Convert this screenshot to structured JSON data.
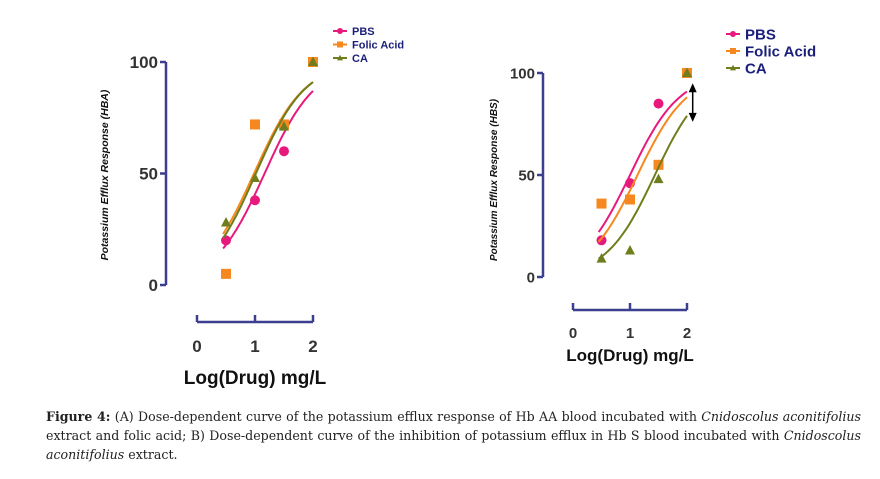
{
  "chart_data": [
    {
      "panel": "A",
      "type": "scatter",
      "title": "",
      "xlabel": "Log(Drug) mg/L",
      "ylabel": "Potassium Efflux Response (HBA)",
      "xlim": [
        0,
        2
      ],
      "ylim": [
        0,
        100
      ],
      "xticks": [
        "0",
        "1",
        "2"
      ],
      "yticks": [
        "0",
        "50",
        "100"
      ],
      "legend_position": "top-right",
      "series": [
        {
          "name": "PBS",
          "color": "#e8197d",
          "marker": "circle",
          "x": [
            0.5,
            1,
            1.5,
            2
          ],
          "y": [
            20,
            38,
            60,
            100
          ],
          "fit": {
            "logEC50": 1.165,
            "hill": 0.99
          }
        },
        {
          "name": "Folic Acid",
          "color": "#f7871f",
          "marker": "square",
          "x": [
            0.5,
            1,
            1.5,
            2
          ],
          "y": [
            5,
            72,
            72,
            100
          ],
          "fit": {
            "logEC50": 0.983,
            "hill": 0.99
          }
        },
        {
          "name": "CA",
          "color": "#6f7d1c",
          "marker": "triangle",
          "x": [
            0.5,
            1,
            1.5,
            2
          ],
          "y": [
            28,
            48,
            71,
            100
          ],
          "fit": {
            "logEC50": 1.015,
            "hill": 1.02
          }
        }
      ]
    },
    {
      "panel": "B",
      "type": "scatter",
      "title": "",
      "xlabel": "Log(Drug) mg/L",
      "ylabel": "Potassium Efflux Response (HBS)",
      "xlim": [
        0,
        2
      ],
      "ylim": [
        0,
        100
      ],
      "xticks": [
        "0",
        "1",
        "2"
      ],
      "yticks": [
        "0",
        "50",
        "100"
      ],
      "legend_position": "top-right",
      "annotation": "double-headed arrow at x=2 spanning PBS to CA fits",
      "series": [
        {
          "name": "PBS",
          "color": "#e8197d",
          "marker": "circle",
          "x": [
            0.5,
            1,
            1.5,
            2
          ],
          "y": [
            18,
            46,
            85,
            100
          ],
          "fit": {
            "logEC50": 1.0,
            "hill": 1.0
          }
        },
        {
          "name": "Folic Acid",
          "color": "#f7871f",
          "marker": "square",
          "x": [
            0.5,
            1,
            1.5,
            2
          ],
          "y": [
            36,
            38,
            55,
            100
          ],
          "fit": {
            "logEC50": 1.132,
            "hill": 1.0
          }
        },
        {
          "name": "CA",
          "color": "#6f7d1c",
          "marker": "triangle",
          "x": [
            0.5,
            1,
            1.5,
            2
          ],
          "y": [
            9,
            13,
            48,
            100
          ],
          "fit": {
            "logEC50": 1.436,
            "hill": 1.02
          }
        }
      ]
    }
  ],
  "caption": {
    "label": "Figure 4:",
    "parts": [
      {
        "t": " (A) Dose-dependent curve of the potassium efflux response of Hb AA blood incubated with ",
        "i": false
      },
      {
        "t": "Cnidoscolus aconitifolius",
        "i": true
      },
      {
        "t": " extract and folic acid; B) Dose-dependent curve of the inhibition of potassium efflux in Hb S blood incubated with ",
        "i": false
      },
      {
        "t": "Cnidoscolus aconitifolius",
        "i": true
      },
      {
        "t": " extract.",
        "i": false
      }
    ]
  }
}
